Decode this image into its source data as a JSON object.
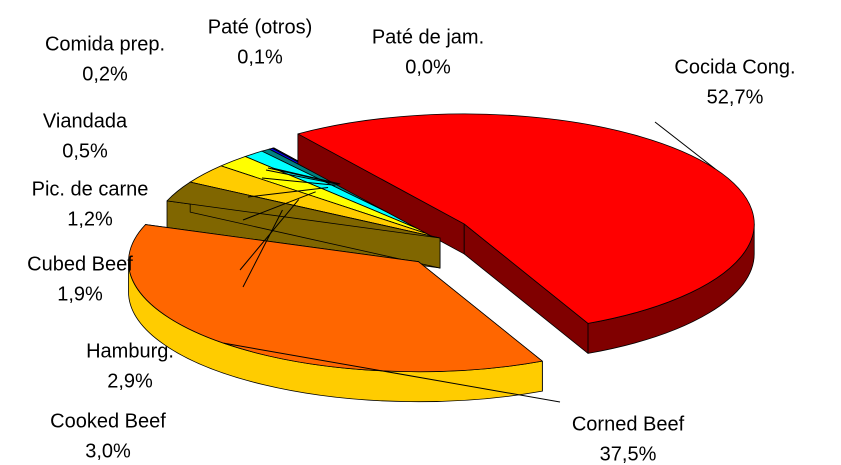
{
  "chart_data": {
    "type": "pie3d",
    "categories": [
      "Cocida Cong.",
      "Corned Beef",
      "Cooked Beef",
      "Hamburg.",
      "Cubed Beef",
      "Pic. de carne",
      "Viandada",
      "Comida prep.",
      "Paté (otros)",
      "Paté de jam."
    ],
    "values": [
      52.7,
      37.5,
      3.0,
      2.9,
      1.9,
      1.2,
      0.5,
      0.2,
      0.1,
      0.0
    ],
    "value_labels": [
      "52,7%",
      "37,5%",
      "3,0%",
      "2,9%",
      "1,9%",
      "1,2%",
      "0,5%",
      "0,2%",
      "0,1%",
      "0,0%"
    ],
    "colors": [
      "#ff0000",
      "#ff6600",
      "#806600",
      "#ffcc00",
      "#ffff00",
      "#00ffff",
      "#008080",
      "#0000ff",
      "#000080",
      "#3366ff"
    ],
    "side_colors": [
      "#800000",
      "#ffcc00",
      "#806600",
      "#ffcc00",
      "#cccc00",
      "#00aaaa",
      "#005050",
      "#0000aa",
      "#000050",
      "#2244aa"
    ]
  }
}
